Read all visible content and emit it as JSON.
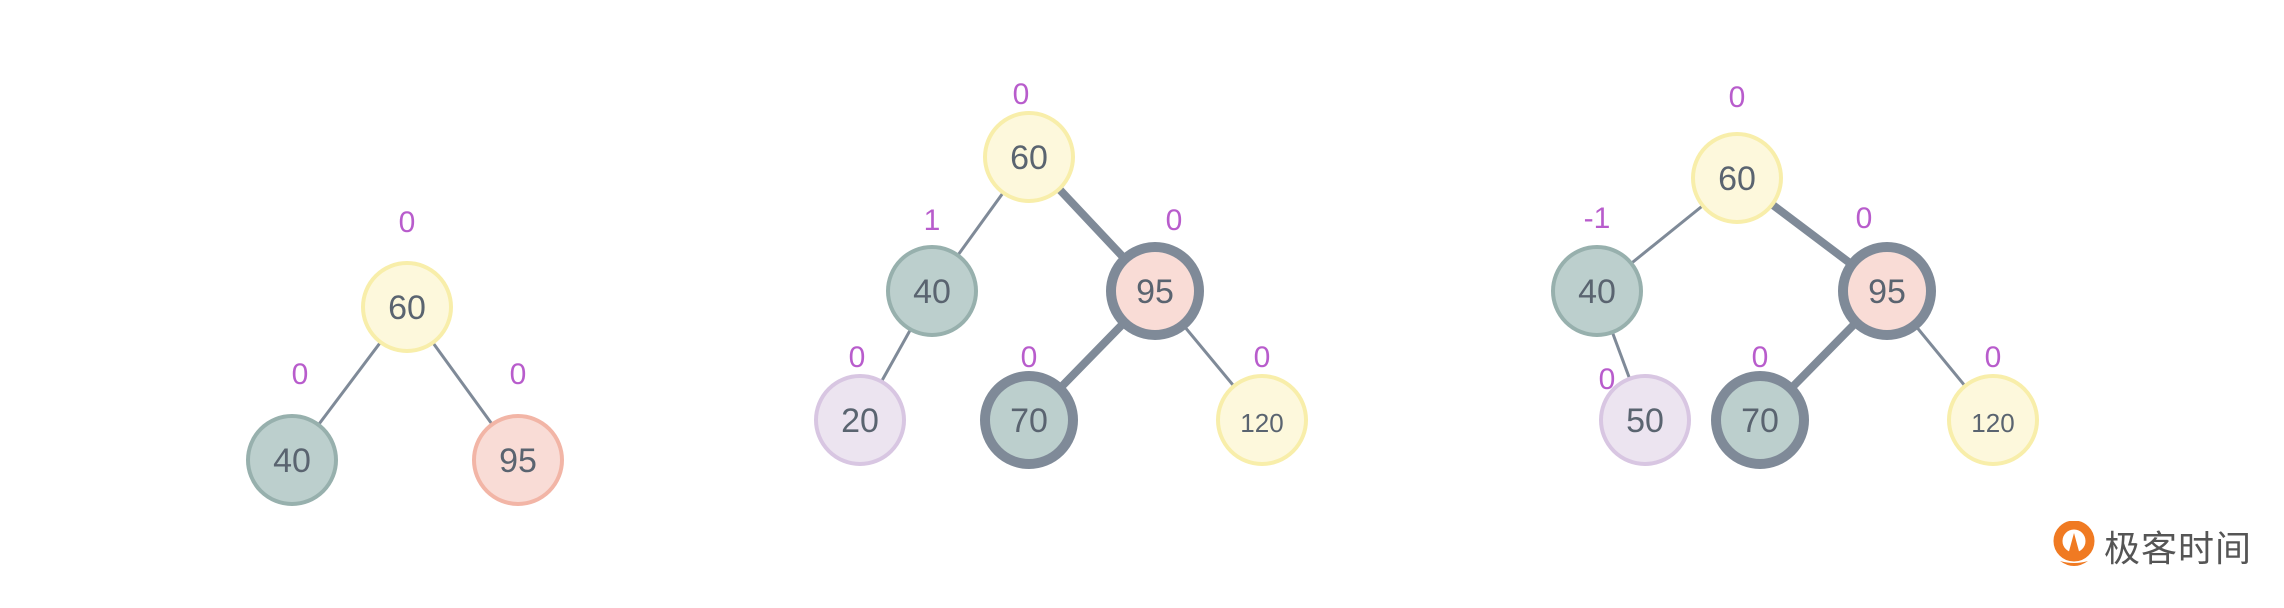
{
  "colors": {
    "edge": "#7f8a98",
    "balance_label": "#b85ccc",
    "node_text": "#5a6470",
    "yellow": {
      "fill": "#fdf8dc",
      "stroke": "#f8eeaa"
    },
    "teal": {
      "fill": "#bccfcd",
      "stroke": "#97b0ad"
    },
    "pink": {
      "fill": "#f9dcd6",
      "stroke": "#f2b5a6"
    },
    "lavender": {
      "fill": "#ece4f0",
      "stroke": "#d8c6e2"
    },
    "highlight_stroke": "#7f8a98"
  },
  "trees": [
    {
      "nodes": [
        {
          "id": "a",
          "value": "60",
          "balance": "0",
          "color": "yellow"
        },
        {
          "id": "b",
          "value": "40",
          "balance": "0",
          "color": "teal"
        },
        {
          "id": "c",
          "value": "95",
          "balance": "0",
          "color": "pink"
        }
      ],
      "edges": [
        [
          "a",
          "b",
          false
        ],
        [
          "a",
          "c",
          false
        ]
      ]
    },
    {
      "nodes": [
        {
          "id": "a",
          "value": "60",
          "balance": "0",
          "color": "yellow"
        },
        {
          "id": "b",
          "value": "40",
          "balance": "1",
          "color": "teal"
        },
        {
          "id": "c",
          "value": "95",
          "balance": "0",
          "color": "pink",
          "highlight": true
        },
        {
          "id": "d",
          "value": "20",
          "balance": "0",
          "color": "lavender"
        },
        {
          "id": "e",
          "value": "70",
          "balance": "0",
          "color": "teal",
          "highlight": true
        },
        {
          "id": "f",
          "value": "120",
          "balance": "0",
          "color": "yellow"
        }
      ],
      "edges": [
        [
          "a",
          "b",
          false
        ],
        [
          "a",
          "c",
          true
        ],
        [
          "b",
          "d",
          false
        ],
        [
          "c",
          "e",
          true
        ],
        [
          "c",
          "f",
          false
        ]
      ]
    },
    {
      "nodes": [
        {
          "id": "a",
          "value": "60",
          "balance": "0",
          "color": "yellow"
        },
        {
          "id": "b",
          "value": "40",
          "balance": "-1",
          "color": "teal"
        },
        {
          "id": "c",
          "value": "95",
          "balance": "0",
          "color": "pink",
          "highlight": true
        },
        {
          "id": "d",
          "value": "50",
          "balance": "0",
          "color": "lavender"
        },
        {
          "id": "e",
          "value": "70",
          "balance": "0",
          "color": "teal",
          "highlight": true
        },
        {
          "id": "f",
          "value": "120",
          "balance": "0",
          "color": "yellow"
        }
      ],
      "edges": [
        [
          "a",
          "b",
          false
        ],
        [
          "a",
          "c",
          true
        ],
        [
          "b",
          "d",
          false
        ],
        [
          "c",
          "e",
          true
        ],
        [
          "c",
          "f",
          false
        ]
      ]
    }
  ],
  "logo": {
    "text": "极客时间",
    "color": "#f07a22"
  }
}
